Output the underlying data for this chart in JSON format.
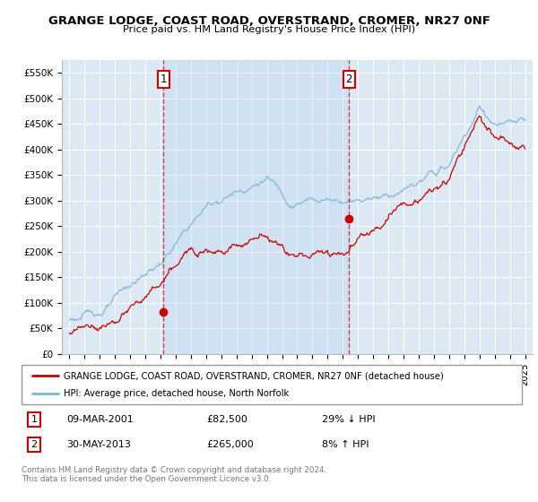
{
  "title": "GRANGE LODGE, COAST ROAD, OVERSTRAND, CROMER, NR27 0NF",
  "subtitle": "Price paid vs. HM Land Registry's House Price Index (HPI)",
  "bg_color": "#dce9f5",
  "sale1_date": 2001.19,
  "sale1_price": 82500,
  "sale2_date": 2013.41,
  "sale2_price": 265000,
  "legend_line1": "GRANGE LODGE, COAST ROAD, OVERSTRAND, CROMER, NR27 0NF (detached house)",
  "legend_line2": "HPI: Average price, detached house, North Norfolk",
  "table_row1": [
    "1",
    "09-MAR-2001",
    "£82,500",
    "29% ↓ HPI"
  ],
  "table_row2": [
    "2",
    "30-MAY-2013",
    "£265,000",
    "8% ↑ HPI"
  ],
  "footer": "Contains HM Land Registry data © Crown copyright and database right 2024.\nThis data is licensed under the Open Government Licence v3.0.",
  "hpi_color": "#7ab4d8",
  "sale_color": "#cc0000",
  "vline_color": "#cc0000",
  "ylim": [
    0,
    575000
  ],
  "yticks": [
    0,
    50000,
    100000,
    150000,
    200000,
    250000,
    300000,
    350000,
    400000,
    450000,
    500000,
    550000
  ],
  "ytick_labels": [
    "£0",
    "£50K",
    "£100K",
    "£150K",
    "£200K",
    "£250K",
    "£300K",
    "£350K",
    "£400K",
    "£450K",
    "£500K",
    "£550K"
  ],
  "xlim_start": 1994.5,
  "xlim_end": 2025.5
}
